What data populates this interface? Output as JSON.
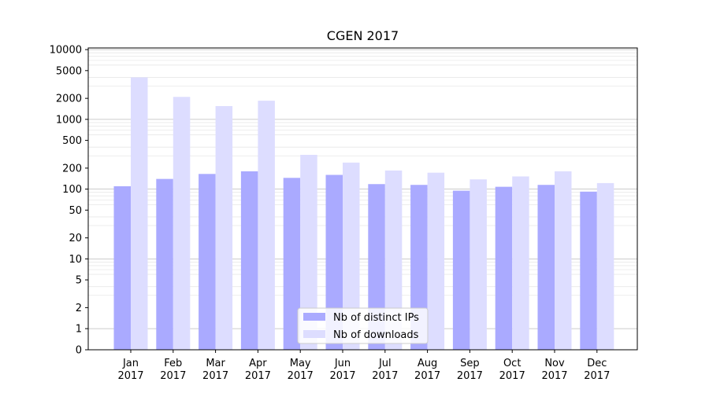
{
  "chart_data": {
    "type": "bar",
    "title": "CGEN 2017",
    "scale": "symlog",
    "categories": [
      "Jan\n2017",
      "Feb\n2017",
      "Mar\n2017",
      "Apr\n2017",
      "May\n2017",
      "Jun\n2017",
      "Jul\n2017",
      "Aug\n2017",
      "Sep\n2017",
      "Oct\n2017",
      "Nov\n2017",
      "Dec\n2017"
    ],
    "series": [
      {
        "name": "Nb of distinct IPs",
        "color": "#aaaaff",
        "values": [
          110,
          140,
          165,
          180,
          145,
          160,
          118,
          115,
          95,
          108,
          115,
          92
        ]
      },
      {
        "name": "Nb of downloads",
        "color": "#ddddff",
        "values": [
          4000,
          2100,
          1550,
          1850,
          310,
          240,
          185,
          172,
          138,
          152,
          180,
          122
        ]
      }
    ],
    "yticks": [
      0,
      1,
      2,
      5,
      10,
      20,
      50,
      100,
      200,
      500,
      1000,
      2000,
      5000,
      10000
    ],
    "ylim": [
      0,
      15000
    ],
    "grid": true,
    "legend_position": "lower-center"
  }
}
